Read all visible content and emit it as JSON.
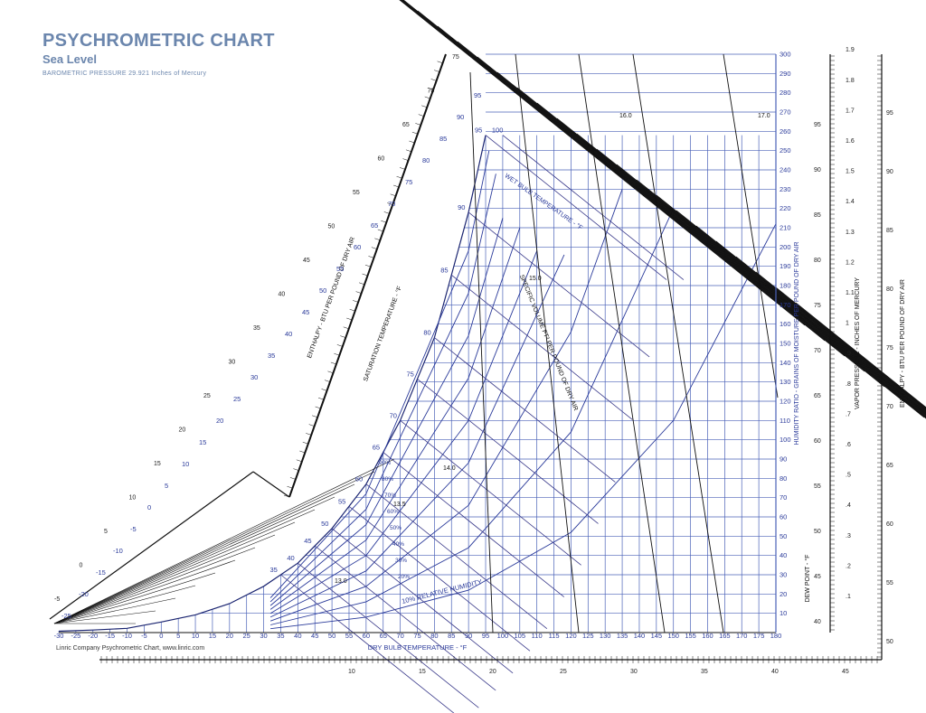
{
  "header": {
    "title": "PSYCHROMETRIC CHART",
    "subtitle": "Sea Level",
    "pressure": "BAROMETRIC PRESSURE 29.921 Inches of Mercury"
  },
  "footer": {
    "credit": "Linric Company Psychrometric Chart, www.linric.com"
  },
  "colors": {
    "grid": "#4a62b8",
    "blue_text": "#2a3a9a",
    "black_lines": "#111111",
    "title": "#6b86ad"
  },
  "chart_data": {
    "type": "line",
    "title": "PSYCHROMETRIC CHART",
    "subtitle": "Sea Level",
    "xlabel": "DRY BULB TEMPERATURE - °F",
    "ylabel": "HUMIDITY RATIO - GRAINS OF MOISTURE PER POUND OF DRY AIR",
    "xlim": [
      -30,
      180
    ],
    "ylim": [
      0,
      300
    ],
    "x_ticks": [
      -30,
      -25,
      -20,
      -15,
      -10,
      -5,
      0,
      5,
      10,
      15,
      20,
      25,
      30,
      35,
      40,
      45,
      50,
      55,
      60,
      65,
      70,
      75,
      80,
      85,
      90,
      95,
      100,
      105,
      110,
      115,
      120,
      125,
      130,
      135,
      140,
      145,
      150,
      155,
      160,
      165,
      170,
      175,
      180
    ],
    "y_ticks": [
      10,
      20,
      30,
      40,
      50,
      60,
      70,
      80,
      90,
      100,
      110,
      120,
      130,
      140,
      150,
      160,
      170,
      180,
      190,
      200,
      210,
      220,
      230,
      240,
      250,
      260,
      270,
      280,
      290,
      300
    ],
    "saturation_curve": {
      "name": "SATURATION TEMPERATURE - °F",
      "x": [
        -30,
        -20,
        -10,
        0,
        10,
        20,
        30,
        40,
        50,
        60,
        70,
        80,
        90,
        95
      ],
      "y": [
        0.7,
        1.3,
        2.2,
        5.5,
        9.2,
        15,
        24,
        36,
        54,
        77,
        110,
        153,
        218,
        258
      ]
    },
    "relative_humidity_lines": {
      "label": "10% RELATIVE HUMIDITY",
      "series": [
        {
          "name": "10% RELATIVE HUMIDITY",
          "x": [
            32,
            60,
            90,
            120,
            150,
            180
          ],
          "y": [
            2,
            8,
            22,
            52,
            110,
            212
          ]
        },
        {
          "name": "20%",
          "x": [
            32,
            60,
            90,
            120,
            150
          ],
          "y": [
            4,
            16,
            44,
            104,
            220
          ]
        },
        {
          "name": "30%",
          "x": [
            32,
            60,
            90,
            120,
            135
          ],
          "y": [
            6,
            24,
            66,
            156,
            230
          ]
        },
        {
          "name": "40%",
          "x": [
            32,
            60,
            90,
            118
          ],
          "y": [
            8,
            32,
            88,
            196
          ]
        },
        {
          "name": "50%",
          "x": [
            32,
            60,
            90,
            110
          ],
          "y": [
            10,
            40,
            110,
            198
          ]
        },
        {
          "name": "60%",
          "x": [
            32,
            60,
            90,
            105
          ],
          "y": [
            12,
            48,
            132,
            210
          ]
        },
        {
          "name": "70%",
          "x": [
            32,
            60,
            90,
            100
          ],
          "y": [
            14,
            56,
            154,
            215
          ]
        },
        {
          "name": "80%",
          "x": [
            32,
            60,
            90,
            98
          ],
          "y": [
            16,
            64,
            176,
            238
          ]
        },
        {
          "name": "90%",
          "x": [
            32,
            60,
            90,
            96
          ],
          "y": [
            18,
            72,
            198,
            250
          ]
        }
      ]
    },
    "wet_bulb_labels": [
      35,
      40,
      45,
      50,
      55,
      60,
      65,
      70,
      75,
      80,
      85,
      90,
      95,
      100
    ],
    "wet_bulb_axis_label": "WET BULB TEMPERATURE - °F",
    "specific_volume_labels": [
      "13.0",
      "13.5",
      "14.0",
      "15.0",
      "16.0",
      "17.0"
    ],
    "specific_volume_axis_label": "SPECIFIC VOLUME FT³ PER POUND OF DRY AIR",
    "left_enthalpy": {
      "label": "ENTHALPY - BTU PER POUND OF DRY AIR",
      "ticks": [
        -5,
        0,
        5,
        10,
        15,
        20,
        25,
        30,
        35,
        40,
        45,
        50,
        55,
        60,
        65,
        70,
        75
      ]
    },
    "bottom_enthalpy_ticks": [
      10,
      15,
      20,
      25,
      30,
      35,
      40,
      45
    ],
    "low_temp_labels": [
      -25,
      -20,
      -15,
      -10,
      -5,
      0,
      5,
      10,
      15,
      20,
      25,
      30,
      35,
      40,
      45,
      50,
      55,
      60,
      65,
      70,
      75,
      80,
      85,
      90,
      95
    ],
    "vapor_pressure": {
      "label": "VAPOR PRESSURE - INCHES OF MERCURY",
      "ticks": [
        ".1",
        ".2",
        ".3",
        ".4",
        ".5",
        ".6",
        ".7",
        ".8",
        ".9",
        "1",
        "1.1",
        "1.2",
        "1.3",
        "1.4",
        "1.5",
        "1.6",
        "1.7",
        "1.8",
        "1.9"
      ]
    },
    "dew_point": {
      "label": "DEW POINT - °F",
      "ticks": [
        40,
        45,
        50,
        55,
        60,
        65,
        70,
        75,
        80,
        85,
        90,
        95
      ]
    },
    "right_enthalpy": {
      "label": "ENTHALPY - BTU PER POUND OF DRY AIR",
      "ticks": [
        50,
        55,
        60,
        65,
        70,
        75,
        80,
        85,
        90,
        95
      ]
    }
  }
}
